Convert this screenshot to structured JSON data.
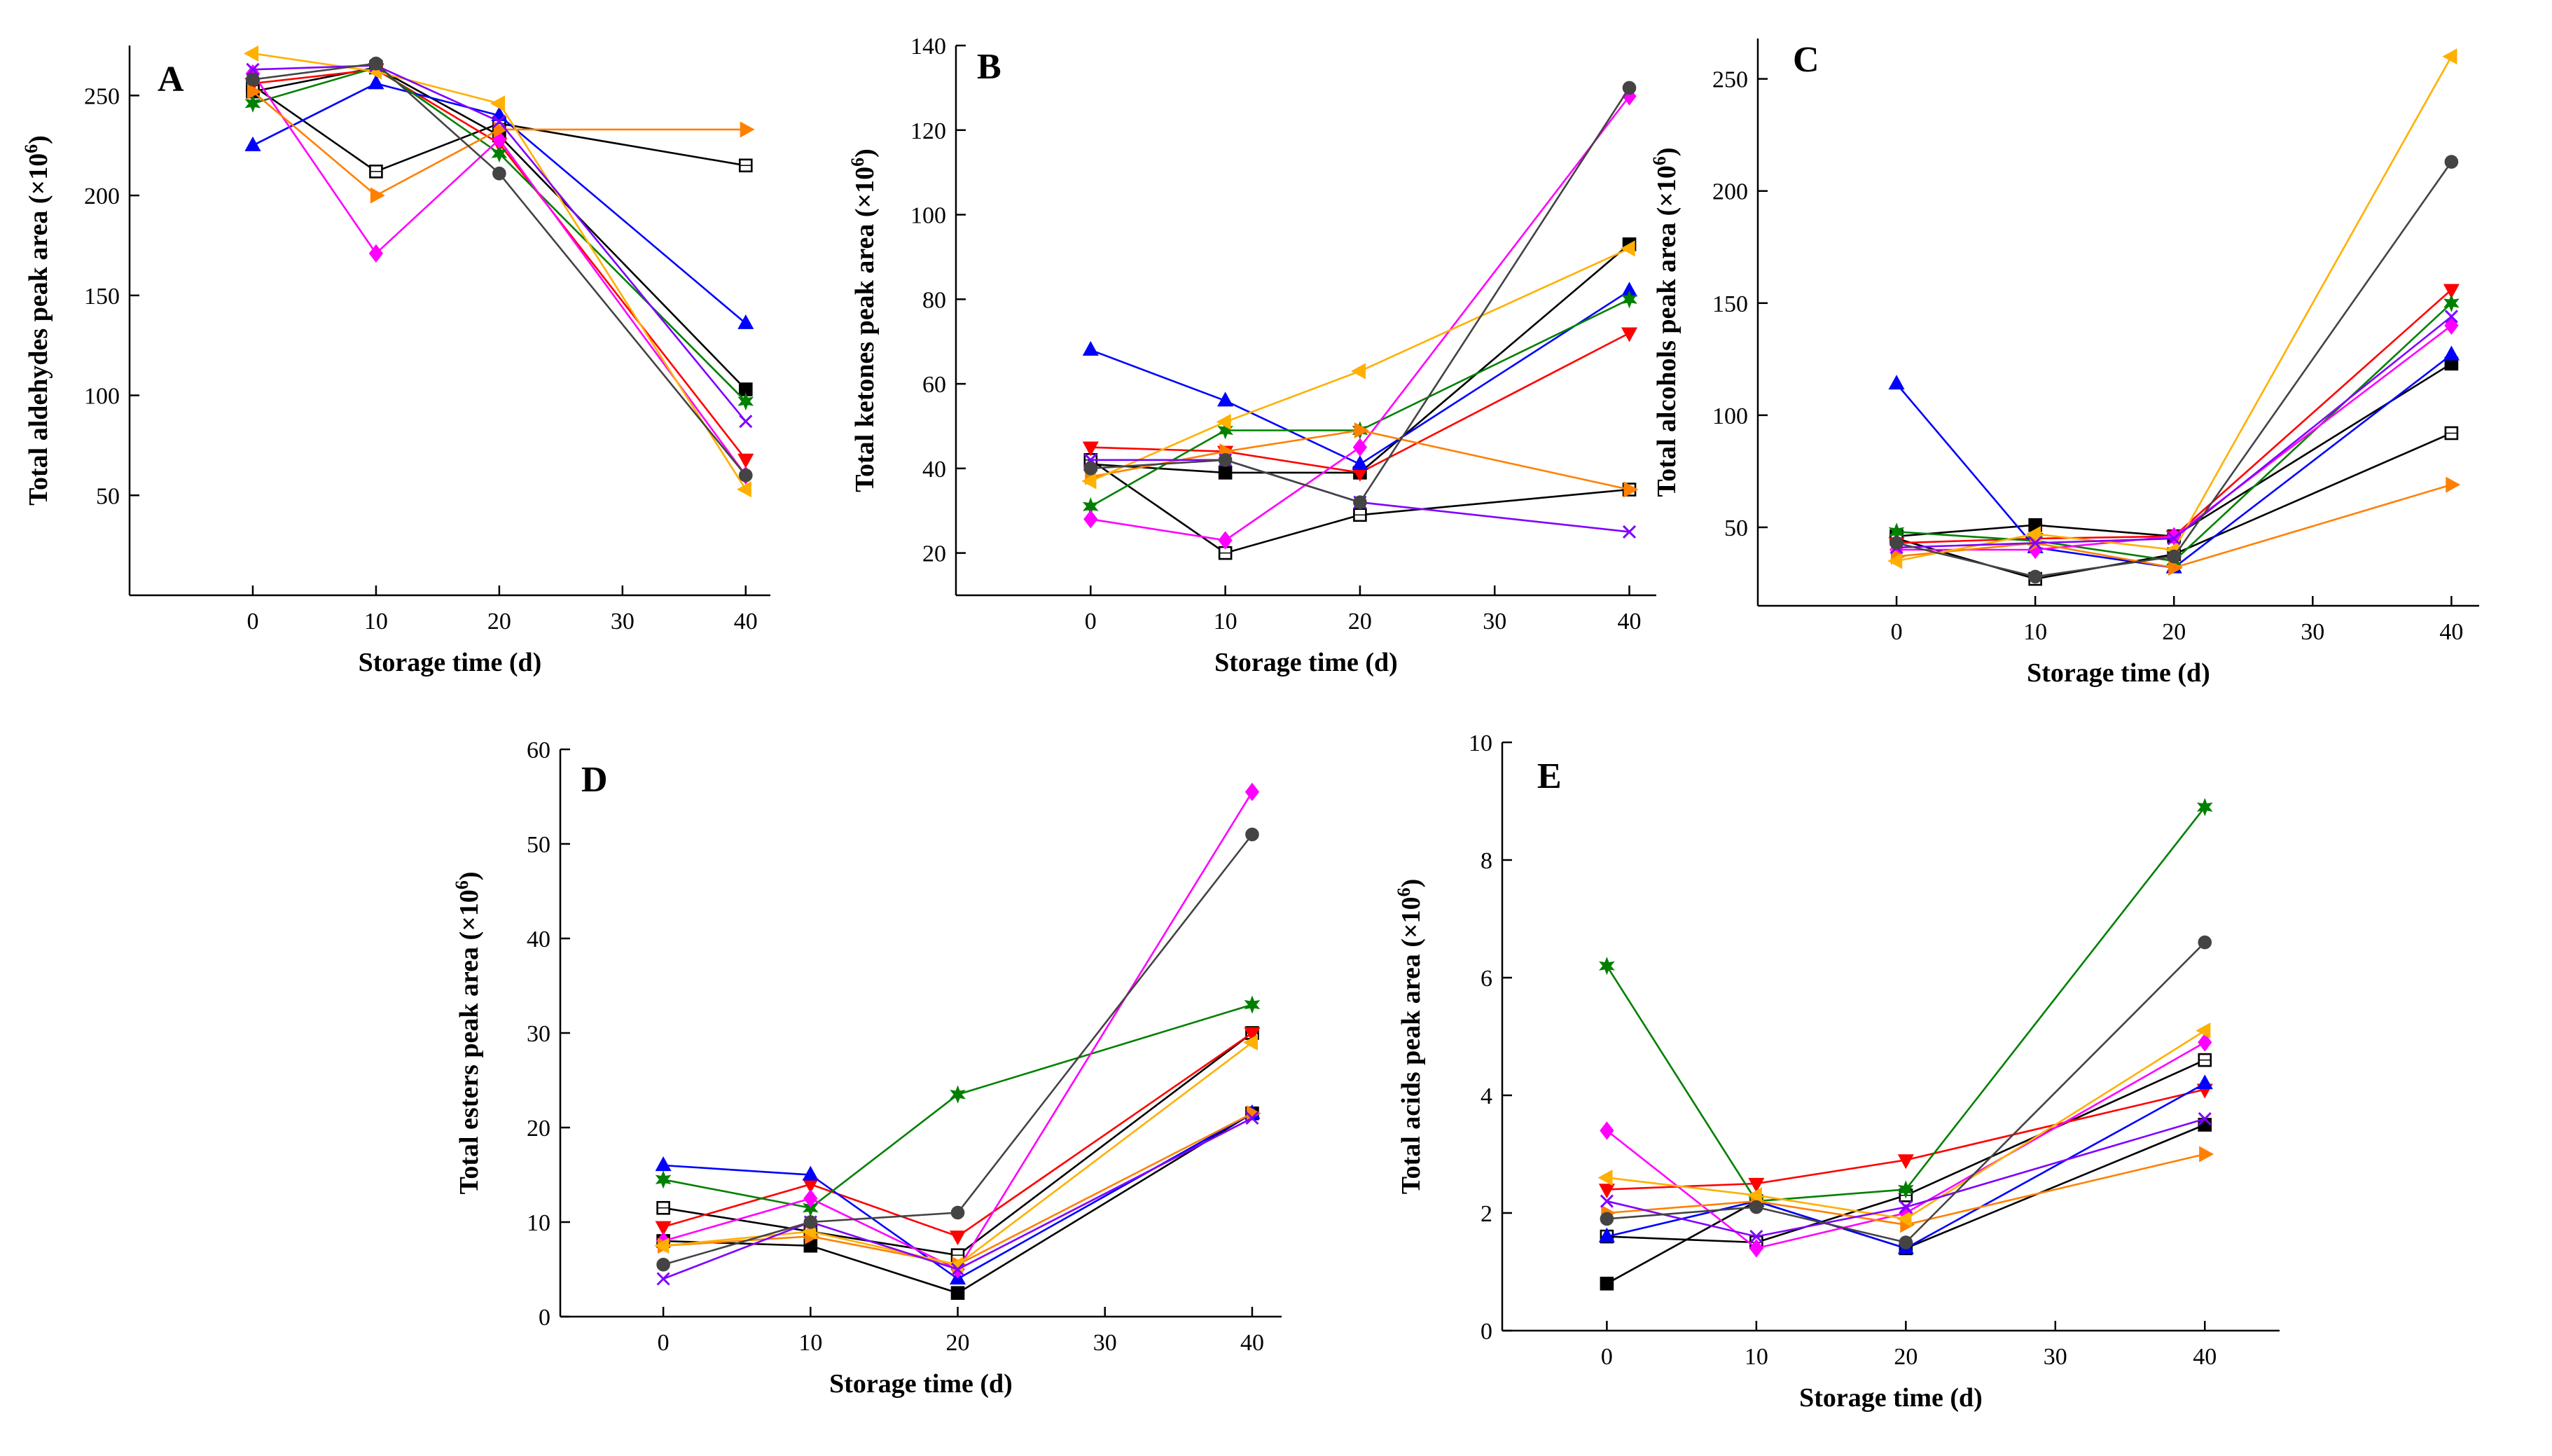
{
  "figure": {
    "colors": {
      "black_filled": "#000000",
      "black_open": "#000000",
      "red": "#ff0000",
      "blue": "#0000ff",
      "green": "#008000",
      "magenta": "#ff00ff",
      "orange": "#ff8000",
      "gold": "#ffb000",
      "violet": "#8000ff",
      "dark": "#444444"
    }
  },
  "chart_data": [
    {
      "panel": "A",
      "type": "line",
      "xlabel": "Storage time (d)",
      "ylabel_main": "Total aldehydes peak area (×10",
      "ylabel_exp": "6",
      "ylabel_end": ")",
      "x": [
        0,
        10,
        20,
        40
      ],
      "xlim": [
        -10,
        42
      ],
      "ylim": [
        0,
        275
      ],
      "xticks": [
        0,
        10,
        20,
        30,
        40
      ],
      "yticks": [
        50,
        100,
        150,
        200,
        250
      ],
      "series": [
        {
          "id": "s1",
          "color": "#000000",
          "marker": "square",
          "filled": true,
          "values": [
            252,
            264,
            230,
            103
          ]
        },
        {
          "id": "s2",
          "color": "#000000",
          "marker": "square",
          "filled": false,
          "values": [
            255,
            212,
            236,
            215
          ]
        },
        {
          "id": "s3",
          "color": "#ff0000",
          "marker": "tri-down",
          "filled": true,
          "values": [
            256,
            263,
            226,
            68
          ]
        },
        {
          "id": "s4",
          "color": "#0000ff",
          "marker": "tri-up",
          "filled": true,
          "values": [
            225,
            256,
            240,
            136
          ]
        },
        {
          "id": "s5",
          "color": "#008000",
          "marker": "star",
          "filled": true,
          "values": [
            246,
            264,
            221,
            97
          ]
        },
        {
          "id": "s6",
          "color": "#ff00ff",
          "marker": "diamond",
          "filled": true,
          "values": [
            261,
            171,
            228,
            60
          ]
        },
        {
          "id": "s7",
          "color": "#ff8000",
          "marker": "tri-right",
          "filled": true,
          "values": [
            252,
            200,
            233,
            233
          ]
        },
        {
          "id": "s8",
          "color": "#ffb000",
          "marker": "tri-left",
          "filled": true,
          "values": [
            271,
            262,
            246,
            53
          ]
        },
        {
          "id": "s9",
          "color": "#8000ff",
          "marker": "x",
          "filled": false,
          "values": [
            263,
            265,
            237,
            87
          ]
        },
        {
          "id": "s10",
          "color": "#444444",
          "marker": "circle",
          "filled": true,
          "values": [
            258,
            266,
            211,
            60
          ]
        }
      ]
    },
    {
      "panel": "B",
      "type": "line",
      "xlabel": "Storage time (d)",
      "ylabel_main": "Total ketones peak area (×10",
      "ylabel_exp": "6",
      "ylabel_end": ")",
      "x": [
        0,
        10,
        20,
        40
      ],
      "xlim": [
        -10,
        42
      ],
      "ylim": [
        10,
        140
      ],
      "xticks": [
        0,
        10,
        20,
        30,
        40
      ],
      "yticks": [
        20,
        40,
        60,
        80,
        100,
        120,
        140
      ],
      "series": [
        {
          "id": "s1",
          "color": "#000000",
          "marker": "square",
          "filled": true,
          "values": [
            41,
            39,
            39,
            93
          ]
        },
        {
          "id": "s2",
          "color": "#000000",
          "marker": "square",
          "filled": false,
          "values": [
            42,
            20,
            29,
            35
          ]
        },
        {
          "id": "s3",
          "color": "#ff0000",
          "marker": "tri-down",
          "filled": true,
          "values": [
            45,
            44,
            39,
            72
          ]
        },
        {
          "id": "s4",
          "color": "#0000ff",
          "marker": "tri-up",
          "filled": true,
          "values": [
            68,
            56,
            41,
            82
          ]
        },
        {
          "id": "s5",
          "color": "#008000",
          "marker": "star",
          "filled": true,
          "values": [
            31,
            49,
            49,
            80
          ]
        },
        {
          "id": "s6",
          "color": "#ff00ff",
          "marker": "diamond",
          "filled": true,
          "values": [
            28,
            23,
            45,
            128
          ]
        },
        {
          "id": "s7",
          "color": "#ff8000",
          "marker": "tri-right",
          "filled": true,
          "values": [
            38,
            44,
            49,
            35
          ]
        },
        {
          "id": "s8",
          "color": "#ffb000",
          "marker": "tri-left",
          "filled": true,
          "values": [
            37,
            51,
            63,
            92
          ]
        },
        {
          "id": "s9",
          "color": "#8000ff",
          "marker": "x",
          "filled": false,
          "values": [
            42,
            42,
            32,
            25
          ]
        },
        {
          "id": "s10",
          "color": "#444444",
          "marker": "circle",
          "filled": true,
          "values": [
            40,
            42,
            32,
            130
          ]
        }
      ]
    },
    {
      "panel": "C",
      "type": "line",
      "xlabel": "Storage time (d)",
      "ylabel_main": "Total alcohols peak area (×10",
      "ylabel_exp": "6",
      "ylabel_end": ")",
      "x": [
        0,
        10,
        20,
        40
      ],
      "xlim": [
        -10,
        42
      ],
      "ylim": [
        15,
        268
      ],
      "xticks": [
        0,
        10,
        20,
        30,
        40
      ],
      "yticks": [
        50,
        100,
        150,
        200,
        250
      ],
      "series": [
        {
          "id": "s1",
          "color": "#000000",
          "marker": "square",
          "filled": true,
          "values": [
            46,
            51,
            46,
            123
          ]
        },
        {
          "id": "s2",
          "color": "#000000",
          "marker": "square",
          "filled": false,
          "values": [
            45,
            27,
            38,
            92
          ]
        },
        {
          "id": "s3",
          "color": "#ff0000",
          "marker": "tri-down",
          "filled": true,
          "values": [
            43,
            45,
            46,
            156
          ]
        },
        {
          "id": "s4",
          "color": "#0000ff",
          "marker": "tri-up",
          "filled": true,
          "values": [
            114,
            41,
            32,
            127
          ]
        },
        {
          "id": "s5",
          "color": "#008000",
          "marker": "star",
          "filled": true,
          "values": [
            48,
            44,
            35,
            150
          ]
        },
        {
          "id": "s6",
          "color": "#ff00ff",
          "marker": "diamond",
          "filled": true,
          "values": [
            40,
            40,
            46,
            140
          ]
        },
        {
          "id": "s7",
          "color": "#ff8000",
          "marker": "tri-right",
          "filled": true,
          "values": [
            37,
            43,
            32,
            69
          ]
        },
        {
          "id": "s8",
          "color": "#ffb000",
          "marker": "tri-left",
          "filled": true,
          "values": [
            35,
            47,
            40,
            260
          ]
        },
        {
          "id": "s9",
          "color": "#8000ff",
          "marker": "x",
          "filled": false,
          "values": [
            41,
            43,
            45,
            144
          ]
        },
        {
          "id": "s10",
          "color": "#444444",
          "marker": "circle",
          "filled": true,
          "values": [
            43,
            28,
            37,
            213
          ]
        }
      ]
    },
    {
      "panel": "D",
      "type": "line",
      "xlabel": "Storage time (d)",
      "ylabel_main": "Total esters peak area (×10",
      "ylabel_exp": "6",
      "ylabel_end": ")",
      "x": [
        0,
        10,
        20,
        40
      ],
      "xlim": [
        -7,
        42
      ],
      "ylim": [
        0,
        60
      ],
      "xticks": [
        0,
        10,
        20,
        30,
        40
      ],
      "yticks": [
        0,
        10,
        20,
        30,
        40,
        50,
        60
      ],
      "series": [
        {
          "id": "s1",
          "color": "#000000",
          "marker": "square",
          "filled": true,
          "values": [
            8,
            7.5,
            2.5,
            21.5
          ]
        },
        {
          "id": "s2",
          "color": "#000000",
          "marker": "square",
          "filled": false,
          "values": [
            11.5,
            9,
            6.5,
            30
          ]
        },
        {
          "id": "s3",
          "color": "#ff0000",
          "marker": "tri-down",
          "filled": true,
          "values": [
            9.5,
            14,
            8.5,
            30
          ]
        },
        {
          "id": "s4",
          "color": "#0000ff",
          "marker": "tri-up",
          "filled": true,
          "values": [
            16,
            15,
            4,
            21.5
          ]
        },
        {
          "id": "s5",
          "color": "#008000",
          "marker": "star",
          "filled": true,
          "values": [
            14.5,
            11.5,
            23.5,
            33
          ]
        },
        {
          "id": "s6",
          "color": "#ff00ff",
          "marker": "diamond",
          "filled": true,
          "values": [
            8,
            12.5,
            5,
            55.5
          ]
        },
        {
          "id": "s7",
          "color": "#ff8000",
          "marker": "tri-right",
          "filled": true,
          "values": [
            7.5,
            8.5,
            5.5,
            21.5
          ]
        },
        {
          "id": "s8",
          "color": "#ffb000",
          "marker": "tri-left",
          "filled": true,
          "values": [
            7.5,
            9,
            5.5,
            29
          ]
        },
        {
          "id": "s9",
          "color": "#8000ff",
          "marker": "x",
          "filled": false,
          "values": [
            4,
            10,
            5,
            21
          ]
        },
        {
          "id": "s10",
          "color": "#444444",
          "marker": "circle",
          "filled": true,
          "values": [
            5.5,
            10,
            11,
            51
          ]
        }
      ]
    },
    {
      "panel": "E",
      "type": "line",
      "xlabel": "Storage time (d)",
      "ylabel_main": "Total acids peak area (×10",
      "ylabel_exp": "6",
      "ylabel_end": ")",
      "x": [
        0,
        10,
        20,
        40
      ],
      "xlim": [
        -7,
        45
      ],
      "ylim": [
        0,
        10
      ],
      "xticks": [
        0,
        10,
        20,
        30,
        40
      ],
      "yticks": [
        0,
        2,
        4,
        6,
        8,
        10
      ],
      "series": [
        {
          "id": "s1",
          "color": "#000000",
          "marker": "square",
          "filled": true,
          "values": [
            0.8,
            2.2,
            1.4,
            3.5
          ]
        },
        {
          "id": "s2",
          "color": "#000000",
          "marker": "square",
          "filled": false,
          "values": [
            1.6,
            1.5,
            2.3,
            4.6
          ]
        },
        {
          "id": "s3",
          "color": "#ff0000",
          "marker": "tri-down",
          "filled": true,
          "values": [
            2.4,
            2.5,
            2.9,
            4.1
          ]
        },
        {
          "id": "s4",
          "color": "#0000ff",
          "marker": "tri-up",
          "filled": true,
          "values": [
            1.6,
            2.2,
            1.4,
            4.2
          ]
        },
        {
          "id": "s5",
          "color": "#008000",
          "marker": "star",
          "filled": true,
          "values": [
            6.2,
            2.2,
            2.4,
            8.9
          ]
        },
        {
          "id": "s6",
          "color": "#ff00ff",
          "marker": "diamond",
          "filled": true,
          "values": [
            3.4,
            1.4,
            2.0,
            4.9
          ]
        },
        {
          "id": "s7",
          "color": "#ff8000",
          "marker": "tri-right",
          "filled": true,
          "values": [
            2.0,
            2.2,
            1.8,
            3.0
          ]
        },
        {
          "id": "s8",
          "color": "#ffb000",
          "marker": "tri-left",
          "filled": true,
          "values": [
            2.6,
            2.3,
            1.9,
            5.1
          ]
        },
        {
          "id": "s9",
          "color": "#8000ff",
          "marker": "x",
          "filled": false,
          "values": [
            2.2,
            1.6,
            2.1,
            3.6
          ]
        },
        {
          "id": "s10",
          "color": "#444444",
          "marker": "circle",
          "filled": true,
          "values": [
            1.9,
            2.1,
            1.5,
            6.6
          ]
        }
      ]
    }
  ]
}
